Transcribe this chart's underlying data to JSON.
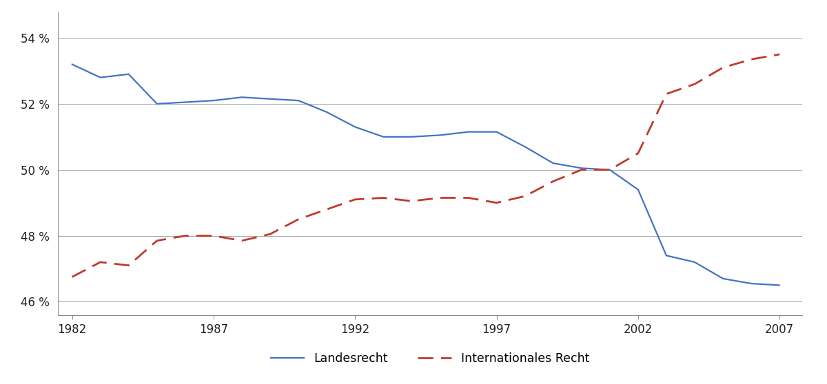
{
  "landesrecht_x": [
    1982,
    1983,
    1984,
    1985,
    1986,
    1987,
    1988,
    1989,
    1990,
    1991,
    1992,
    1993,
    1994,
    1995,
    1996,
    1997,
    1998,
    1999,
    2000,
    2001,
    2002,
    2003,
    2004,
    2005,
    2006,
    2007
  ],
  "landesrecht_y": [
    53.2,
    52.8,
    52.9,
    52.0,
    52.05,
    52.1,
    52.2,
    52.15,
    52.1,
    51.75,
    51.3,
    51.0,
    51.0,
    51.05,
    51.15,
    51.15,
    50.7,
    50.2,
    50.05,
    50.0,
    49.4,
    47.4,
    47.2,
    46.7,
    46.55,
    46.5
  ],
  "internationales_x": [
    1982,
    1983,
    1984,
    1985,
    1986,
    1987,
    1988,
    1989,
    1990,
    1991,
    1992,
    1993,
    1994,
    1995,
    1996,
    1997,
    1998,
    1999,
    2000,
    2001,
    2002,
    2003,
    2004,
    2005,
    2006,
    2007
  ],
  "internationales_y": [
    46.75,
    47.2,
    47.1,
    47.85,
    48.0,
    48.0,
    47.85,
    48.05,
    48.5,
    48.8,
    49.1,
    49.15,
    49.05,
    49.15,
    49.15,
    49.0,
    49.2,
    49.65,
    50.0,
    50.0,
    50.5,
    52.3,
    52.6,
    53.1,
    53.35,
    53.5
  ],
  "landesrecht_color": "#4472c4",
  "internationales_color": "#c0392b",
  "background_color": "#ffffff",
  "grid_color": "#aaaaaa",
  "ylim": [
    45.6,
    54.8
  ],
  "xlim": [
    1981.5,
    2007.8
  ],
  "yticks": [
    46,
    48,
    50,
    52,
    54
  ],
  "ytick_labels": [
    "46 %",
    "48 %",
    "50 %",
    "52 %",
    "54 %"
  ],
  "xticks": [
    1982,
    1987,
    1992,
    1997,
    2002,
    2007
  ],
  "legend_landesrecht": "Landesrecht",
  "legend_internationales": "Internationales Recht",
  "legend_fontsize": 12.5
}
